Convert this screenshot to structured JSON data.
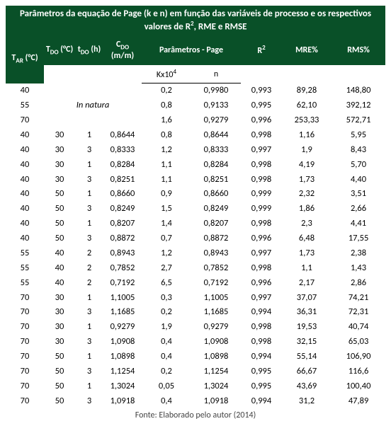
{
  "title_html": "Parâmetros da equação de Page (k e n) em função das variáveis de processo e os respectivos valores de R<sup>2</sup>, RME e RMSE",
  "head": {
    "tar_html": "T<sub>AR</sub> (°C)",
    "tdo_html": "T<sub>DO</sub> (°C)",
    "tdo_h_html": "t<sub>DO</sub> (h)",
    "cdo_html": "C<sub>DO</sub> (m/m)",
    "params": "Parâmetros - Page",
    "r2_html": "R<sup>2</sup>",
    "mre": "MRE%",
    "rms": "RMS%",
    "sub_k_html": "Kx10<sup>4</sup>",
    "sub_n": "n"
  },
  "in_natura": "In natura",
  "rows": [
    {
      "tar": "40",
      "tdo": "",
      "tdoh": "",
      "cdo": "",
      "k": "0,2",
      "n": "0,9980",
      "r2": "0,993",
      "mre": "89,28",
      "rms": "148,80"
    },
    {
      "tar": "55",
      "tdo": "",
      "tdoh": "",
      "cdo": "",
      "k": "0,8",
      "n": "0,9133",
      "r2": "0,995",
      "mre": "62,10",
      "rms": "392,12"
    },
    {
      "tar": "70",
      "tdo": "",
      "tdoh": "",
      "cdo": "",
      "k": "1,6",
      "n": "0,9279",
      "r2": "0,996",
      "mre": "253,33",
      "rms": "572,71"
    },
    {
      "tar": "40",
      "tdo": "30",
      "tdoh": "1",
      "cdo": "0,8644",
      "k": "0,8",
      "n": "0,8644",
      "r2": "0,998",
      "mre": "1,16",
      "rms": "5,95"
    },
    {
      "tar": "40",
      "tdo": "30",
      "tdoh": "3",
      "cdo": "0,8333",
      "k": "1,2",
      "n": "0,8333",
      "r2": "0,997",
      "mre": "1,9",
      "rms": "8,43"
    },
    {
      "tar": "40",
      "tdo": "30",
      "tdoh": "1",
      "cdo": "0,8284",
      "k": "1,1",
      "n": "0,8284",
      "r2": "0,998",
      "mre": "4,19",
      "rms": "5,70"
    },
    {
      "tar": "40",
      "tdo": "30",
      "tdoh": "3",
      "cdo": "0,8251",
      "k": "1,1",
      "n": "0,8251",
      "r2": "0,998",
      "mre": "1,73",
      "rms": "4,40"
    },
    {
      "tar": "40",
      "tdo": "50",
      "tdoh": "1",
      "cdo": "0,8660",
      "k": "0,9",
      "n": "0,8660",
      "r2": "0,999",
      "mre": "2,32",
      "rms": "3,51"
    },
    {
      "tar": "40",
      "tdo": "50",
      "tdoh": "3",
      "cdo": "0,8249",
      "k": "1,5",
      "n": "0,8249",
      "r2": "0,999",
      "mre": "1,86",
      "rms": "2,66"
    },
    {
      "tar": "40",
      "tdo": "50",
      "tdoh": "1",
      "cdo": "0,8207",
      "k": "1,4",
      "n": "0,8207",
      "r2": "0,998",
      "mre": "2,3",
      "rms": "4,41"
    },
    {
      "tar": "40",
      "tdo": "50",
      "tdoh": "3",
      "cdo": "0,8872",
      "k": "0,7",
      "n": "0,8872",
      "r2": "0,996",
      "mre": "6,48",
      "rms": "17,55"
    },
    {
      "tar": "55",
      "tdo": "40",
      "tdoh": "2",
      "cdo": "0,8943",
      "k": "1,2",
      "n": "0,8943",
      "r2": "0,997",
      "mre": "1,73",
      "rms": "2,38"
    },
    {
      "tar": "55",
      "tdo": "40",
      "tdoh": "2",
      "cdo": "0,7852",
      "k": "2,7",
      "n": "0,7852",
      "r2": "0,998",
      "mre": "1,1",
      "rms": "1,43"
    },
    {
      "tar": "55",
      "tdo": "40",
      "tdoh": "2",
      "cdo": "0,7192",
      "k": "6,5",
      "n": "0,7192",
      "r2": "0,996",
      "mre": "2,17",
      "rms": "2,86"
    },
    {
      "tar": "70",
      "tdo": "30",
      "tdoh": "1",
      "cdo": "1,1005",
      "k": "0,3",
      "n": "1,1005",
      "r2": "0,997",
      "mre": "37,07",
      "rms": "74,21"
    },
    {
      "tar": "70",
      "tdo": "30",
      "tdoh": "3",
      "cdo": "1,1685",
      "k": "0,2",
      "n": "1,1685",
      "r2": "0,994",
      "mre": "36,31",
      "rms": "72,31"
    },
    {
      "tar": "70",
      "tdo": "30",
      "tdoh": "1",
      "cdo": "0,9279",
      "k": "1,9",
      "n": "0,9279",
      "r2": "0,998",
      "mre": "19,53",
      "rms": "40,74"
    },
    {
      "tar": "70",
      "tdo": "30",
      "tdoh": "3",
      "cdo": "1,0908",
      "k": "0,4",
      "n": "1,0908",
      "r2": "0,998",
      "mre": "32,15",
      "rms": "65,03"
    },
    {
      "tar": "70",
      "tdo": "50",
      "tdoh": "1",
      "cdo": "1,0898",
      "k": "0,4",
      "n": "1,0898",
      "r2": "0,994",
      "mre": "55,14",
      "rms": "106,90"
    },
    {
      "tar": "70",
      "tdo": "50",
      "tdoh": "3",
      "cdo": "1,1254",
      "k": "0,2",
      "n": "1,1254",
      "r2": "0,995",
      "mre": "66,67",
      "rms": "116,6"
    },
    {
      "tar": "70",
      "tdo": "50",
      "tdoh": "1",
      "cdo": "1,3024",
      "k": "0,05",
      "n": "1,3024",
      "r2": "0,995",
      "mre": "43,69",
      "rms": "100,40"
    },
    {
      "tar": "70",
      "tdo": "50",
      "tdoh": "3",
      "cdo": "1,0918",
      "k": "0,4",
      "n": "1,0918",
      "r2": "0,994",
      "mre": "31,2",
      "rms": "47,89"
    }
  ],
  "source": "Fonte: Elaborado pelo autor (2014)",
  "colors": {
    "header_bg": "#095028",
    "header_fg": "#ffffff",
    "body_bg": "#ffffff",
    "body_fg": "#000000"
  }
}
